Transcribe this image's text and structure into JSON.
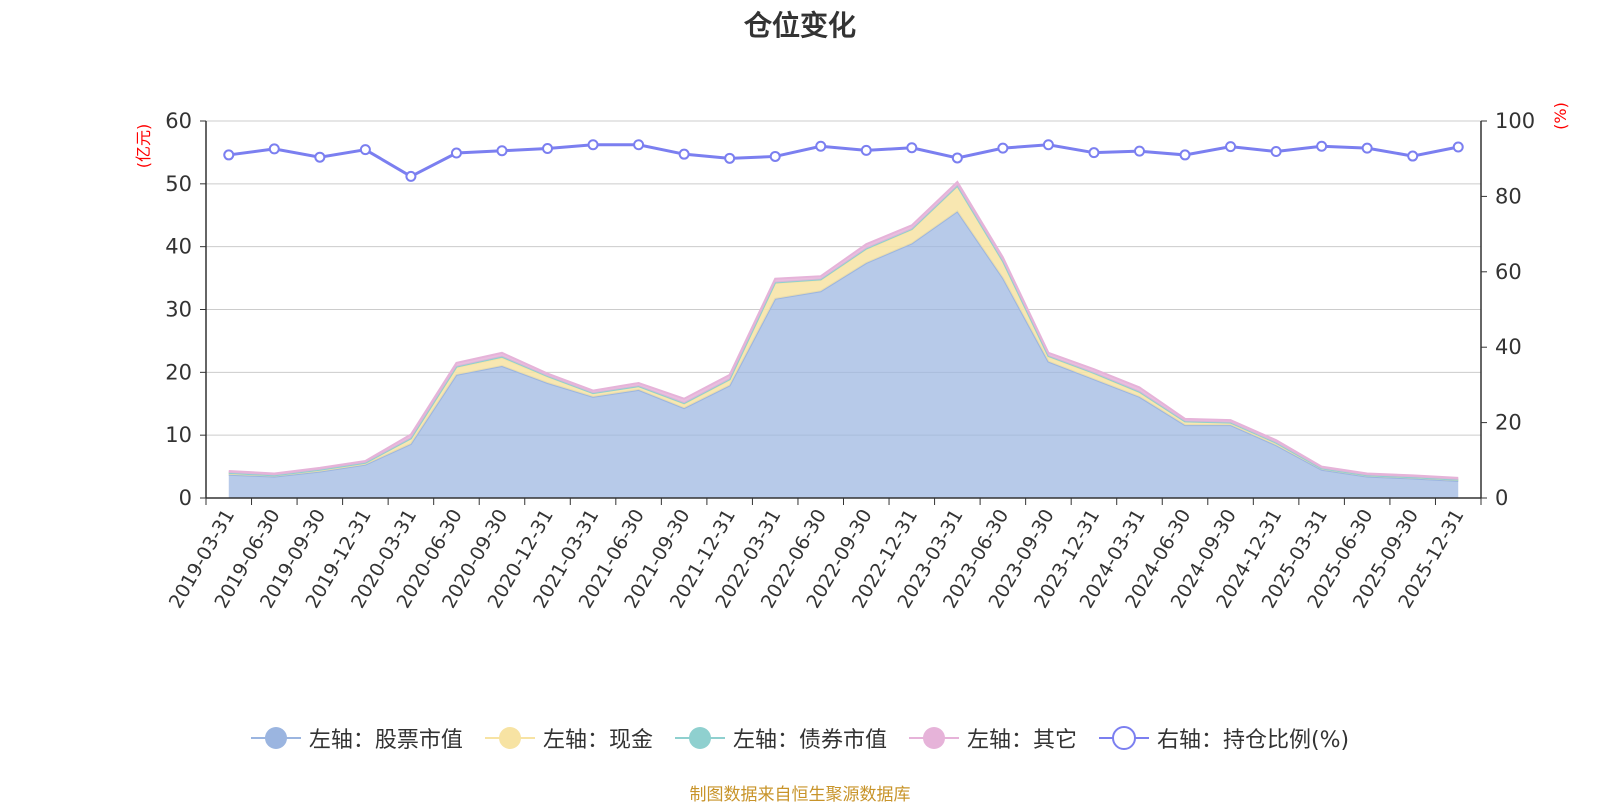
{
  "source": "制图数据来自恒生聚源数据库",
  "chart_data": {
    "type": "area",
    "title": "仓位变化",
    "left_axis": {
      "unit": "(亿元)",
      "ylim": [
        0,
        60
      ],
      "ticks": [
        "0",
        "10",
        "20",
        "30",
        "40",
        "50",
        "60"
      ]
    },
    "right_axis": {
      "unit": "(%)",
      "ylim": [
        0,
        100
      ],
      "ticks": [
        "0",
        "20",
        "40",
        "60",
        "80",
        "100"
      ]
    },
    "categories": [
      "2019-03-31",
      "2019-06-30",
      "2019-09-30",
      "2019-12-31",
      "2020-03-31",
      "2020-06-30",
      "2020-09-30",
      "2020-12-31",
      "2021-03-31",
      "2021-06-30",
      "2021-09-30",
      "2021-12-31",
      "2022-03-31",
      "2022-06-30",
      "2022-09-30",
      "2022-12-31",
      "2023-03-31",
      "2023-06-30",
      "2023-09-30",
      "2023-12-31",
      "2024-03-31",
      "2024-06-30",
      "2024-09-30",
      "2024-12-31",
      "2025-03-31",
      "2025-06-30",
      "2025-09-30",
      "2025-12-31"
    ],
    "stacked_series": [
      {
        "name": "左轴：股票市值",
        "color": "#9bb5e0",
        "values": [
          3.7,
          3.4,
          4.2,
          5.3,
          8.6,
          19.6,
          21.0,
          18.3,
          16.1,
          17.2,
          14.3,
          17.9,
          31.7,
          32.9,
          37.4,
          40.5,
          45.6,
          35.0,
          21.7,
          18.9,
          16.1,
          11.6,
          11.6,
          8.4,
          4.5,
          3.4,
          3.1,
          2.7
        ]
      },
      {
        "name": "左轴：现金",
        "color": "#f7e3a3",
        "values": [
          0.3,
          0.2,
          0.3,
          0.3,
          0.9,
          1.2,
          1.3,
          1.0,
          0.6,
          0.6,
          0.7,
          0.9,
          2.5,
          1.8,
          2.2,
          2.2,
          4.0,
          2.6,
          0.8,
          0.9,
          0.7,
          0.6,
          0.4,
          0.4,
          0.2,
          0.2,
          0.2,
          0.2
        ]
      },
      {
        "name": "左轴：债券市值",
        "color": "#8fd0cf",
        "values": [
          0.0,
          0.0,
          0.0,
          0.0,
          0.0,
          0.1,
          0.2,
          0.1,
          0.0,
          0.0,
          0.1,
          0.1,
          0.1,
          0.1,
          0.1,
          0.1,
          0.1,
          0.1,
          0.1,
          0.1,
          0.1,
          0.0,
          0.0,
          0.0,
          0.0,
          0.0,
          0.0,
          0.0
        ]
      },
      {
        "name": "左轴：其它",
        "color": "#e6b3d9",
        "values": [
          0.3,
          0.3,
          0.3,
          0.3,
          0.6,
          0.6,
          0.6,
          0.4,
          0.4,
          0.5,
          0.7,
          0.7,
          0.6,
          0.5,
          0.7,
          0.6,
          0.6,
          0.6,
          0.5,
          0.6,
          0.7,
          0.4,
          0.4,
          0.4,
          0.3,
          0.3,
          0.3,
          0.3
        ]
      }
    ],
    "line_series": {
      "name": "右轴：持仓比例(%)",
      "color": "#7b7ff0",
      "values": [
        91.0,
        92.6,
        90.4,
        92.4,
        85.3,
        91.5,
        92.1,
        92.7,
        93.7,
        93.7,
        91.2,
        90.1,
        90.6,
        93.3,
        92.2,
        92.9,
        90.2,
        92.8,
        93.7,
        91.6,
        92.0,
        91.0,
        93.2,
        91.9,
        93.3,
        92.8,
        90.7,
        93.1
      ]
    },
    "grid": true,
    "legend_position": "bottom"
  }
}
